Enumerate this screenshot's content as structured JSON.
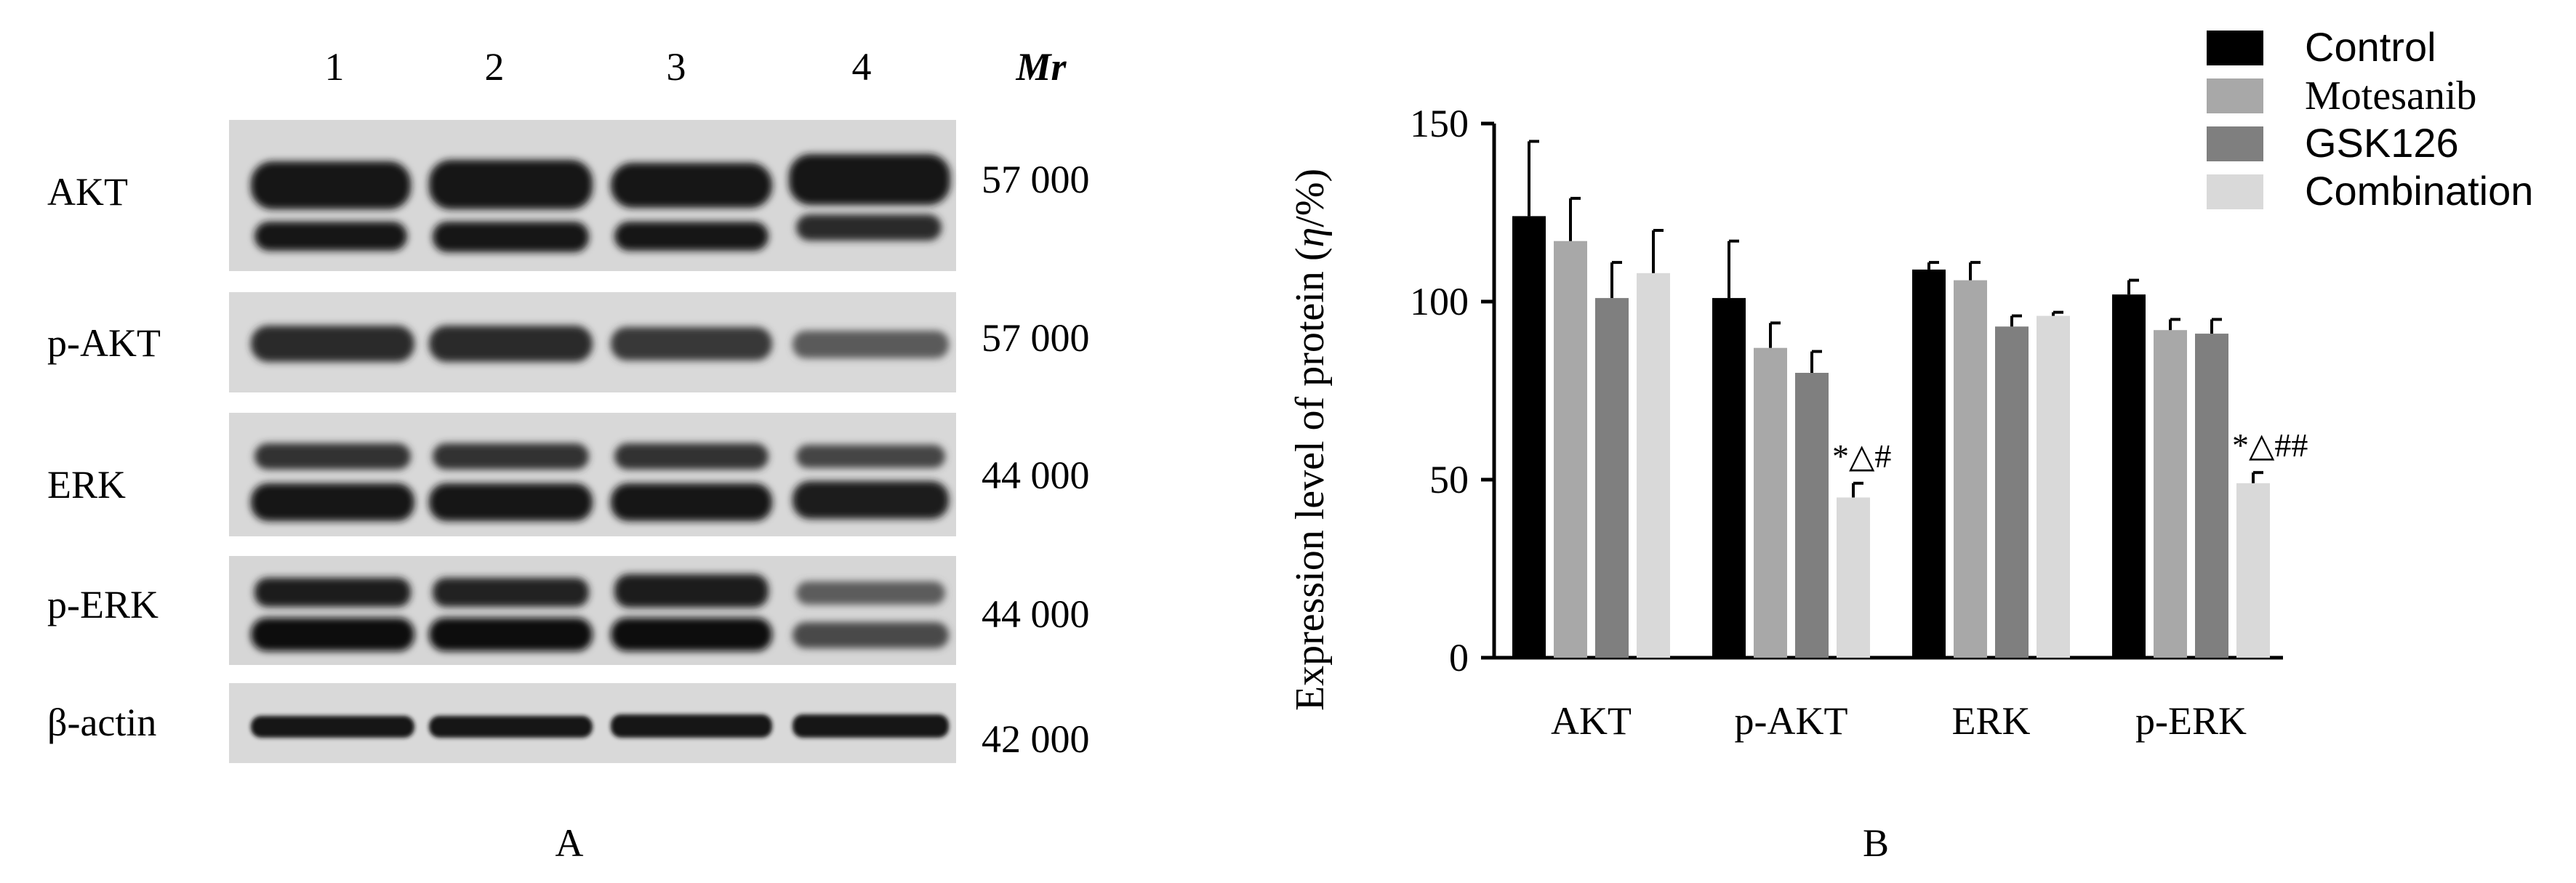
{
  "panel_a": {
    "lane_labels": [
      "1",
      "2",
      "3",
      "4"
    ],
    "mr_label": "Mr",
    "blots": [
      {
        "protein": "AKT",
        "mr": "57 000"
      },
      {
        "protein": "p-AKT",
        "mr": "57 000"
      },
      {
        "protein": "ERK",
        "mr": "44 000"
      },
      {
        "protein": "p-ERK",
        "mr": "44 000"
      },
      {
        "protein": "β-actin",
        "mr": "42 000"
      }
    ],
    "caption": "A"
  },
  "panel_b": {
    "caption": "B",
    "legend_position": "top-right"
  },
  "chart_data": {
    "type": "bar",
    "categories": [
      "AKT",
      "p-AKT",
      "ERK",
      "p-ERK"
    ],
    "series": [
      {
        "name": "Control",
        "color": "#000000",
        "values": [
          124,
          101,
          109,
          102
        ],
        "errors": [
          21,
          16,
          2,
          4
        ]
      },
      {
        "name": "Motesanib",
        "color": "#a8a8a8",
        "values": [
          117,
          87,
          106,
          92
        ],
        "errors": [
          12,
          7,
          5,
          3
        ]
      },
      {
        "name": "GSK126",
        "color": "#7f7f7f",
        "values": [
          101,
          80,
          93,
          91
        ],
        "errors": [
          10,
          6,
          3,
          4
        ]
      },
      {
        "name": "Combination",
        "color": "#d9d9d9",
        "values": [
          108,
          45,
          96,
          49
        ],
        "errors": [
          12,
          4,
          1,
          3
        ]
      }
    ],
    "ylabel_prefix": "Expression level of protein (",
    "ylabel_symbol": "η",
    "ylabel_suffix": "/%)",
    "ylim": [
      0,
      150
    ],
    "yticks": [
      0,
      50,
      100,
      150
    ],
    "annotations": [
      {
        "category": "p-AKT",
        "series": "Combination",
        "text": "*△#"
      },
      {
        "category": "p-ERK",
        "series": "Combination",
        "text": "*△##"
      }
    ]
  }
}
